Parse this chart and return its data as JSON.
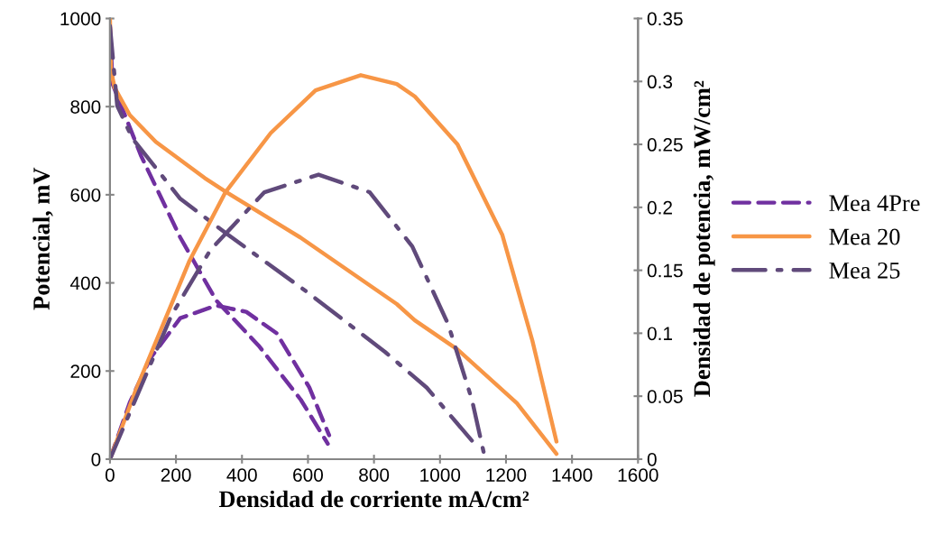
{
  "chart_data": {
    "type": "line",
    "xlabel": "Densidad de corriente mA/cm²",
    "ylabel": "Potencial, mV",
    "y2label": "Densidad de potencia, mW/cm²",
    "xlim": [
      0,
      1600
    ],
    "xticks": [
      0,
      200,
      400,
      600,
      800,
      1000,
      1200,
      1400,
      1600
    ],
    "ylim": [
      0,
      1000
    ],
    "yticks": [
      0,
      200,
      400,
      600,
      800,
      1000
    ],
    "y2lim": [
      0,
      0.35
    ],
    "y2ticks": [
      0,
      0.05,
      0.1,
      0.15,
      0.2,
      0.25,
      0.3,
      0.35
    ],
    "grid": false,
    "legend": "right",
    "marker": "none",
    "series": [
      {
        "name": "Mea 4Pre",
        "color": "#7030a0",
        "line_style": "dashed",
        "x": [
          0,
          8,
          95,
          213,
          322,
          450,
          578,
          660
        ],
        "values": [
          980,
          851,
          687,
          503,
          360,
          258,
          135,
          35
        ]
      },
      {
        "name": "Mea 20",
        "color": "#f79646",
        "line_style": "solid",
        "x": [
          0,
          3,
          14,
          60,
          139,
          287,
          350,
          577,
          869,
          924,
          1053,
          1233,
          1353
        ],
        "values": [
          1000,
          883,
          843,
          781,
          720,
          638,
          607,
          503,
          352,
          315,
          249,
          127,
          12
        ]
      },
      {
        "name": "Mea 25",
        "color": "#604a7b",
        "line_style": "dashdot",
        "x": [
          0,
          22,
          68,
          213,
          358,
          596,
          834,
          960,
          1116
        ],
        "values": [
          983,
          802,
          728,
          591,
          509,
          380,
          243,
          162,
          25
        ]
      },
      {
        "color": "#7030a0",
        "line_style": "dashed",
        "axis": "y2",
        "x": [
          0,
          60,
          122,
          213,
          322,
          413,
          505,
          604,
          664
        ],
        "values": [
          0,
          0.045,
          0.08,
          0.112,
          0.122,
          0.117,
          0.1,
          0.057,
          0.019
        ]
      },
      {
        "color": "#f79646",
        "line_style": "solid",
        "axis": "y2",
        "x": [
          0,
          77,
          240,
          350,
          487,
          623,
          760,
          869,
          924,
          1053,
          1189,
          1280,
          1353
        ],
        "values": [
          0,
          0.054,
          0.157,
          0.212,
          0.259,
          0.293,
          0.305,
          0.298,
          0.288,
          0.25,
          0.178,
          0.094,
          0.014
        ]
      },
      {
        "color": "#604a7b",
        "line_style": "dashdot",
        "axis": "y2",
        "x": [
          0,
          186,
          304,
          468,
          632,
          787,
          916,
          1025,
          1097,
          1137
        ],
        "values": [
          0,
          0.114,
          0.166,
          0.212,
          0.226,
          0.212,
          0.169,
          0.107,
          0.047,
          0
        ]
      }
    ]
  }
}
